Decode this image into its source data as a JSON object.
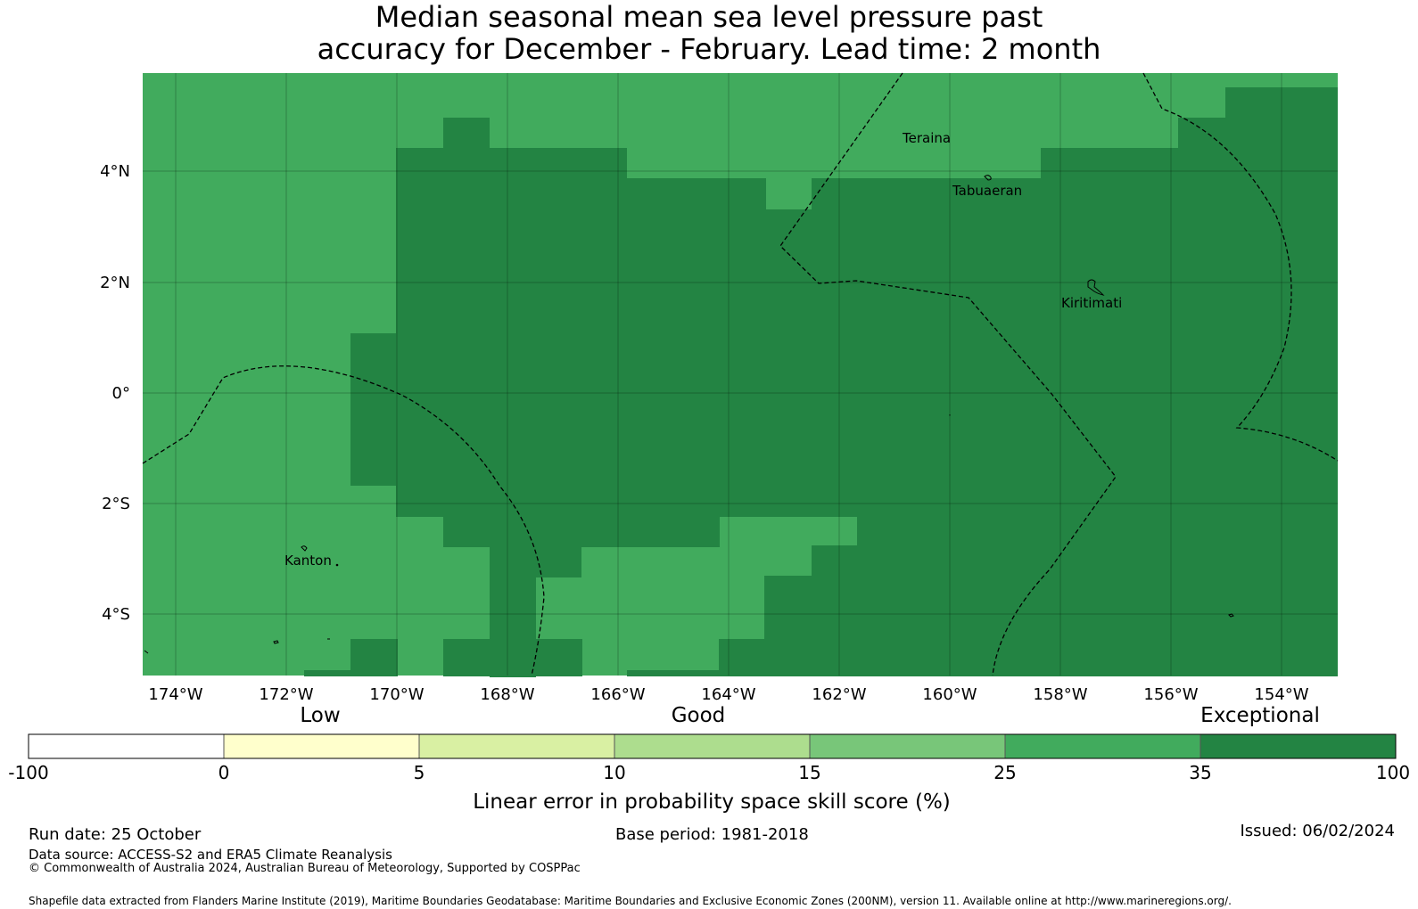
{
  "title": {
    "line1": "Median seasonal mean sea level pressure past",
    "line2": "accuracy for December - February. Lead time: 2 month"
  },
  "map": {
    "lon_ticks": [
      "174°W",
      "172°W",
      "170°W",
      "168°W",
      "166°W",
      "164°W",
      "162°W",
      "160°W",
      "158°W",
      "156°W",
      "154°W"
    ],
    "lat_ticks": [
      "4°N",
      "2°N",
      "0°",
      "2°S",
      "4°S"
    ],
    "places": [
      "Teraina",
      "Tabuaeran",
      "Kiritimati",
      "Kanton"
    ],
    "colors": {
      "light": "#41ab5d",
      "dark": "#238443",
      "grid": "#000000",
      "boundary": "#000000"
    }
  },
  "colorbar": {
    "categories": [
      "Low",
      "Good",
      "Exceptional"
    ],
    "ticks": [
      "-100",
      "0",
      "5",
      "10",
      "15",
      "25",
      "35",
      "100"
    ],
    "colors": [
      "#ffffff",
      "#ffffcc",
      "#d9f0a3",
      "#addd8e",
      "#78c679",
      "#41ab5d",
      "#238443"
    ],
    "label": "Linear error in probability space skill score (%)"
  },
  "footer": {
    "run_date": "Run date: 25 October",
    "base_period": "Base period: 1981-2018",
    "issued": "Issued: 06/02/2024",
    "data_source": "Data source: ACCESS-S2 and ERA5 Climate Reanalysis",
    "copyright": "© Commonwealth of Australia 2024, Australian Bureau of Meteorology, Supported by COSPPac",
    "shapefile": "Shapefile data extracted from Flanders Marine Institute (2019), Maritime Boundaries Geodatabase: Maritime Boundaries and Exclusive Economic Zones (200NM), version 11. Available online at http://www.marineregions.org/."
  }
}
